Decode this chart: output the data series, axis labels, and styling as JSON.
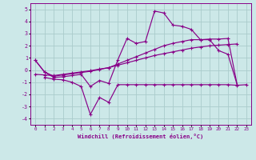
{
  "xlabel": "Windchill (Refroidissement éolien,°C)",
  "bg_color": "#cce8e8",
  "grid_color": "#aacccc",
  "line_color": "#880088",
  "xlim": [
    -0.5,
    23.5
  ],
  "ylim": [
    -4.5,
    5.5
  ],
  "xticks": [
    0,
    1,
    2,
    3,
    4,
    5,
    6,
    7,
    8,
    9,
    10,
    11,
    12,
    13,
    14,
    15,
    16,
    17,
    18,
    19,
    20,
    21,
    22,
    23
  ],
  "yticks": [
    -4,
    -3,
    -2,
    -1,
    0,
    1,
    2,
    3,
    4,
    5
  ],
  "line1_x": [
    0,
    1,
    2,
    3,
    4,
    5,
    6,
    7,
    8,
    9,
    10,
    11,
    12,
    13,
    14,
    15,
    16,
    17,
    18,
    19,
    20,
    21,
    22
  ],
  "line1_y": [
    0.8,
    -0.15,
    -0.6,
    -0.55,
    -0.45,
    -0.35,
    -1.35,
    -0.85,
    -1.1,
    0.85,
    2.6,
    2.2,
    2.35,
    4.85,
    4.7,
    3.7,
    3.6,
    3.35,
    2.5,
    2.5,
    1.6,
    1.3,
    -1.2
  ],
  "line2_x": [
    1,
    2,
    3,
    4,
    5,
    6,
    7,
    8,
    9,
    10,
    11,
    12,
    13,
    14,
    15,
    16,
    17,
    18,
    19,
    20,
    21,
    22,
    23
  ],
  "line2_y": [
    -0.6,
    -0.75,
    -0.8,
    -1.0,
    -1.35,
    -3.65,
    -2.25,
    -2.65,
    -1.2,
    -1.2,
    -1.2,
    -1.2,
    -1.2,
    -1.2,
    -1.2,
    -1.2,
    -1.2,
    -1.2,
    -1.2,
    -1.2,
    -1.2,
    -1.25,
    -1.2
  ],
  "line3_x": [
    0,
    1,
    2,
    3,
    4,
    5,
    6,
    7,
    8,
    9,
    10,
    11,
    12,
    13,
    14,
    15,
    16,
    17,
    18,
    19,
    20,
    21,
    22
  ],
  "line3_y": [
    0.8,
    -0.15,
    -0.5,
    -0.4,
    -0.3,
    -0.2,
    -0.1,
    0.05,
    0.2,
    0.5,
    0.8,
    1.1,
    1.4,
    1.7,
    2.0,
    2.2,
    2.35,
    2.5,
    2.5,
    2.55,
    2.55,
    2.6,
    -1.2
  ],
  "line4_x": [
    0,
    1,
    2,
    3,
    4,
    5,
    6,
    7,
    8,
    9,
    10,
    11,
    12,
    13,
    14,
    15,
    16,
    17,
    18,
    19,
    20,
    21,
    22
  ],
  "line4_y": [
    -0.35,
    -0.4,
    -0.45,
    -0.35,
    -0.25,
    -0.15,
    -0.05,
    0.08,
    0.2,
    0.4,
    0.6,
    0.8,
    1.0,
    1.2,
    1.35,
    1.5,
    1.65,
    1.8,
    1.9,
    2.0,
    2.05,
    2.1,
    2.15
  ]
}
